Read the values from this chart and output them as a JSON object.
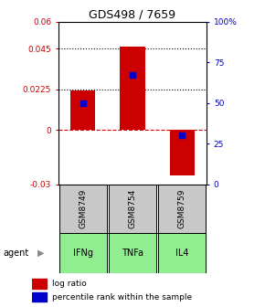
{
  "title": "GDS498 / 7659",
  "samples": [
    "GSM8749",
    "GSM8754",
    "GSM8759"
  ],
  "agents": [
    "IFNg",
    "TNFa",
    "IL4"
  ],
  "log_ratios": [
    0.022,
    0.046,
    -0.025
  ],
  "percentile_ranks": [
    50,
    67,
    30
  ],
  "bar_color": "#cc0000",
  "dot_color": "#0000cc",
  "ylim_left": [
    -0.03,
    0.06
  ],
  "ylim_right": [
    0,
    100
  ],
  "yticks_left": [
    -0.03,
    0,
    0.0225,
    0.045,
    0.06
  ],
  "ytick_labels_left": [
    "-0.03",
    "0",
    "0.0225",
    "0.045",
    "0.06"
  ],
  "yticks_right": [
    0,
    25,
    50,
    75,
    100
  ],
  "ytick_labels_right": [
    "0",
    "25",
    "50",
    "75",
    "100%"
  ],
  "hlines_dotted": [
    0.045,
    0.0225
  ],
  "hline_zero_color": "#cc0000",
  "sample_box_color": "#c8c8c8",
  "agent_colors": [
    "#90ee90",
    "#90ee90",
    "#90ee90"
  ],
  "legend_log_ratio": "log ratio",
  "legend_percentile": "percentile rank within the sample",
  "agent_label": "agent",
  "bar_width": 0.5
}
